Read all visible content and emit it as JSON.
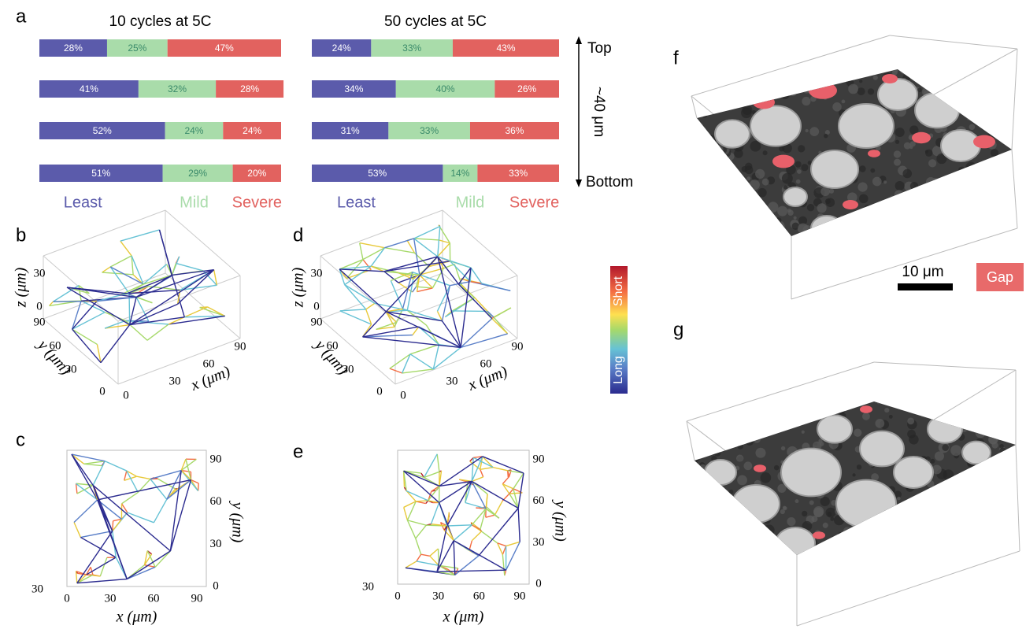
{
  "chart_data": [
    {
      "type": "bar",
      "orientation": "horizontal",
      "stacked": true,
      "title": "10 cycles at 5C",
      "categories": [
        null,
        null,
        null,
        null
      ],
      "xlim": [
        0,
        100
      ],
      "series": [
        {
          "name": "Least",
          "color": "#5b5bab",
          "values": [
            28,
            41,
            52,
            51
          ],
          "value_labels": [
            "28%",
            "41%",
            "52%",
            "51%"
          ]
        },
        {
          "name": "Mild",
          "color": "#a9dcaa",
          "values": [
            25,
            32,
            24,
            29
          ],
          "value_labels": [
            "25%",
            "32%",
            "24%",
            "29%"
          ]
        },
        {
          "name": "Severe",
          "color": "#e2625f",
          "values": [
            47,
            28,
            24,
            20
          ],
          "value_labels": [
            "47%",
            "28%",
            "24%",
            "20%"
          ]
        }
      ]
    },
    {
      "type": "bar",
      "orientation": "horizontal",
      "stacked": true,
      "title": "50 cycles at 5C",
      "categories": [
        null,
        null,
        null,
        null
      ],
      "xlim": [
        0,
        100
      ],
      "series": [
        {
          "name": "Least",
          "color": "#5b5bab",
          "values": [
            24,
            34,
            31,
            53
          ],
          "value_labels": [
            "24%",
            "34%",
            "31%",
            "53%"
          ]
        },
        {
          "name": "Mild",
          "color": "#a9dcaa",
          "values": [
            33,
            40,
            33,
            14
          ],
          "value_labels": [
            "33%",
            "40%",
            "33%",
            "14%"
          ]
        },
        {
          "name": "Severe",
          "color": "#e2625f",
          "values": [
            43,
            26,
            36,
            33
          ],
          "value_labels": [
            "43%",
            "26%",
            "36%",
            "33%"
          ]
        }
      ]
    }
  ],
  "panel_labels": {
    "a": "a",
    "b": "b",
    "c": "c",
    "d": "d",
    "e": "e",
    "f": "f",
    "g": "g"
  },
  "depth_axis": {
    "top": "Top",
    "bottom": "Bottom",
    "label": "~40 μm"
  },
  "networks_3d": [
    {
      "xlabel": "x (μm)",
      "ylabel": "y (μm)",
      "zlabel": "z (μm)",
      "xticks": [
        0,
        30,
        60,
        90
      ],
      "yticks": [
        0,
        30,
        60,
        90
      ],
      "zticks": [
        0,
        30
      ]
    },
    {
      "xlabel": "x (μm)",
      "ylabel": "y (μm)",
      "zlabel": "z (μm)",
      "xticks": [
        0,
        30,
        60,
        90
      ],
      "yticks": [
        0,
        30,
        60,
        90
      ],
      "zticks": [
        0,
        30
      ]
    }
  ],
  "networks_2d": [
    {
      "xlabel": "x (μm)",
      "ylabel": "y (μm)",
      "xticks": [
        0,
        30,
        60,
        90
      ],
      "yticks": [
        0,
        30,
        60,
        90
      ],
      "corner_label": 30
    },
    {
      "xlabel": "x (μm)",
      "ylabel": "y (μm)",
      "xticks": [
        0,
        30,
        60,
        90
      ],
      "yticks": [
        0,
        30,
        60,
        90
      ],
      "corner_label": 30
    }
  ],
  "colorbar": {
    "high": "Short",
    "low": "Long"
  },
  "scale_bar": "10 μm",
  "gap_legend": "Gap"
}
